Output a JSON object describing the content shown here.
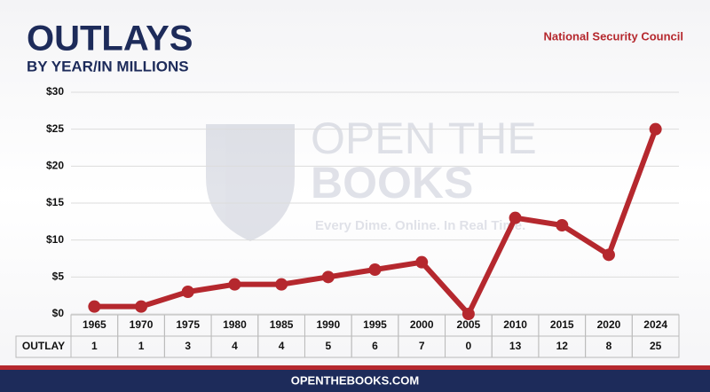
{
  "chart_data": {
    "type": "line",
    "title": "OUTLAYS",
    "subtitle": "BY YEAR/IN MILLIONS",
    "annotation": "National Security Council",
    "watermark_title": "OPEN THE",
    "watermark_title_2": "BOOKS",
    "watermark_tagline": "Every Dime. Online. In Real Time.",
    "table_row_label": "OUTLAY",
    "footer": "OPENTHEBOOKS.COM",
    "categories": [
      "1965",
      "1970",
      "1975",
      "1980",
      "1985",
      "1990",
      "1995",
      "2000",
      "2005",
      "2010",
      "2015",
      "2020",
      "2024"
    ],
    "values": [
      1,
      1,
      3,
      4,
      4,
      5,
      6,
      7,
      0,
      13,
      12,
      8,
      25
    ],
    "color": "#b5282e",
    "ylim": [
      0,
      30
    ],
    "yticks": [
      {
        "value": 0,
        "label": "$0"
      },
      {
        "value": 5,
        "label": "$5"
      },
      {
        "value": 10,
        "label": "$10"
      },
      {
        "value": 15,
        "label": "$15"
      },
      {
        "value": 20,
        "label": "$20"
      },
      {
        "value": 25,
        "label": "$25"
      },
      {
        "value": 30,
        "label": "$30"
      }
    ],
    "grid": true
  }
}
